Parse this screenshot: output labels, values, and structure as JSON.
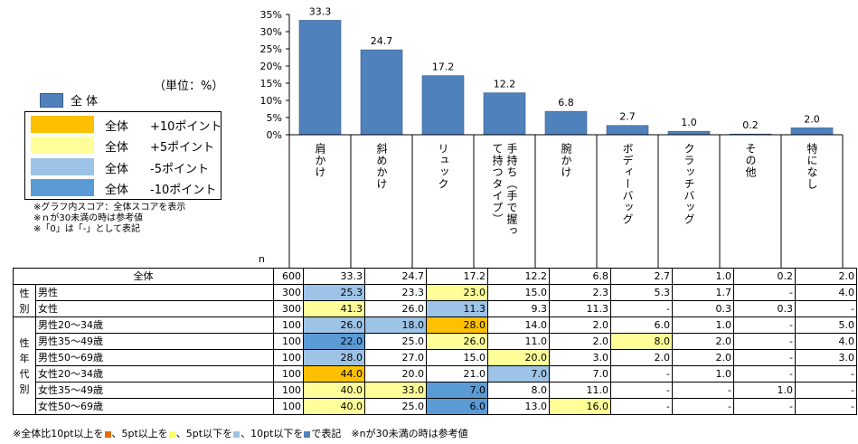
{
  "colors": {
    "bar": "#4f81bd",
    "plus10": "#ffc000",
    "plus5": "#ffff99",
    "minus5": "#9dc3e6",
    "minus10": "#5b9bd5"
  },
  "unit_label": "（単位：%）",
  "legend": {
    "all_label": "全 体",
    "rows": [
      {
        "a": "全体",
        "b": "+10ポイント",
        "color": "plus10"
      },
      {
        "a": "全体",
        "b": "+5ポイント",
        "color": "plus5"
      },
      {
        "a": "全体",
        "b": "-5ポイント",
        "color": "minus5"
      },
      {
        "a": "全体",
        "b": "-10ポイント",
        "color": "minus10"
      }
    ]
  },
  "notes": [
    "※グラフ内スコア：全体スコアを表示",
    "※ｎが30未満の時は参考値",
    "※「0」は「-」として表記"
  ],
  "n_label": "n",
  "chart_data": {
    "type": "bar",
    "categories": [
      "肩かけ",
      "斜めかけ",
      "リュック",
      "手持ち（手で握って持つタイプ）",
      "腕かけ",
      "ボディーバッグ",
      "クラッチバッグ",
      "その他",
      "特になし"
    ],
    "category_columns": [
      [
        "肩かけ"
      ],
      [
        "斜めかけ"
      ],
      [
        "リュック"
      ],
      [
        "手持ち（手で握っ",
        "て持つタイプ）"
      ],
      [
        "腕かけ"
      ],
      [
        "ボディーバッグ"
      ],
      [
        "クラッチバッグ"
      ],
      [
        "その他"
      ],
      [
        "特になし"
      ]
    ],
    "series": [
      {
        "name": "全 体",
        "values": [
          33.3,
          24.7,
          17.2,
          12.2,
          6.8,
          2.7,
          1.0,
          0.2,
          2.0
        ]
      }
    ],
    "value_labels": [
      "33.3",
      "24.7",
      "17.2",
      "12.2",
      "6.8",
      "2.7",
      "1.0",
      "0.2",
      "2.0"
    ],
    "ylim": [
      0,
      35
    ],
    "yticks": [
      "0%",
      "5%",
      "10%",
      "15%",
      "20%",
      "25%",
      "30%",
      "35%"
    ],
    "grid": false
  },
  "table": {
    "total": {
      "label": "全体",
      "n": "600",
      "values": [
        "33.3",
        "24.7",
        "17.2",
        "12.2",
        "6.8",
        "2.7",
        "1.0",
        "0.2",
        "2.0"
      ],
      "hl": [
        "",
        "",
        "",
        "",
        "",
        "",
        "",
        "",
        ""
      ]
    },
    "groups": [
      {
        "label": "性別",
        "rows": [
          {
            "label": "男性",
            "n": "300",
            "values": [
              "25.3",
              "23.3",
              "23.0",
              "15.0",
              "2.3",
              "5.3",
              "1.7",
              "-",
              "4.0"
            ],
            "hl": [
              "minus5",
              "",
              "plus5",
              "",
              "",
              "",
              "",
              "",
              ""
            ]
          },
          {
            "label": "女性",
            "n": "300",
            "values": [
              "41.3",
              "26.0",
              "11.3",
              "9.3",
              "11.3",
              "-",
              "0.3",
              "0.3",
              "-"
            ],
            "hl": [
              "plus5",
              "",
              "minus5",
              "",
              "",
              "",
              "",
              "",
              ""
            ]
          }
        ]
      },
      {
        "label": "性年代別",
        "rows": [
          {
            "label": "男性20～34歳",
            "n": "100",
            "values": [
              "26.0",
              "18.0",
              "28.0",
              "14.0",
              "2.0",
              "6.0",
              "1.0",
              "-",
              "5.0"
            ],
            "hl": [
              "minus5",
              "minus5",
              "plus10",
              "",
              "",
              "",
              "",
              "",
              ""
            ]
          },
          {
            "label": "男性35～49歳",
            "n": "100",
            "values": [
              "22.0",
              "25.0",
              "26.0",
              "11.0",
              "2.0",
              "8.0",
              "2.0",
              "-",
              "4.0"
            ],
            "hl": [
              "minus10",
              "",
              "plus5",
              "",
              "",
              "plus5",
              "",
              "",
              ""
            ]
          },
          {
            "label": "男性50～69歳",
            "n": "100",
            "values": [
              "28.0",
              "27.0",
              "15.0",
              "20.0",
              "3.0",
              "2.0",
              "2.0",
              "-",
              "3.0"
            ],
            "hl": [
              "minus5",
              "",
              "",
              "plus5",
              "",
              "",
              "",
              "",
              ""
            ]
          },
          {
            "label": "女性20～34歳",
            "n": "100",
            "values": [
              "44.0",
              "20.0",
              "21.0",
              "7.0",
              "7.0",
              "-",
              "1.0",
              "-",
              "-"
            ],
            "hl": [
              "plus10",
              "",
              "",
              "minus5",
              "",
              "",
              "",
              "",
              ""
            ]
          },
          {
            "label": "女性35～49歳",
            "n": "100",
            "values": [
              "40.0",
              "33.0",
              "7.0",
              "8.0",
              "11.0",
              "-",
              "-",
              "1.0",
              "-"
            ],
            "hl": [
              "plus5",
              "plus5",
              "minus10",
              "",
              "",
              "",
              "",
              "",
              ""
            ]
          },
          {
            "label": "女性50～69歳",
            "n": "100",
            "values": [
              "40.0",
              "25.0",
              "6.0",
              "13.0",
              "16.0",
              "-",
              "-",
              "-",
              "-"
            ],
            "hl": [
              "plus5",
              "",
              "minus10",
              "",
              "plus5",
              "",
              "",
              "",
              ""
            ]
          }
        ]
      }
    ]
  },
  "footnote": {
    "parts": [
      "※全体比10pt以上を",
      "、5pt以上を",
      "、5pt以下を",
      "、10pt以下を",
      "で表記　※nが30未満の時は参考値"
    ],
    "dot_colors": [
      "#e46c0a",
      "#ffff66",
      "#9dc3e6",
      "#4f81bd"
    ]
  }
}
